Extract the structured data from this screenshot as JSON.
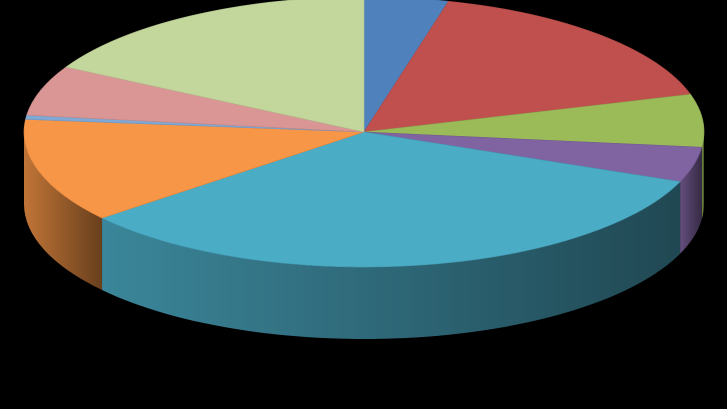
{
  "chart_data": {
    "type": "pie",
    "style": "3d",
    "title": "",
    "background": "#000000",
    "slices": [
      {
        "value": 4.0,
        "color": "#4F81BD"
      },
      {
        "value": 16.5,
        "color": "#C0504D"
      },
      {
        "value": 6.3,
        "color": "#9BBB59"
      },
      {
        "value": 4.2,
        "color": "#8064A2"
      },
      {
        "value": 33.0,
        "color": "#4BACC6"
      },
      {
        "value": 12.5,
        "color": "#F79646"
      },
      {
        "value": 0.5,
        "color": "#7FA8D6"
      },
      {
        "value": 6.0,
        "color": "#D99694"
      },
      {
        "value": 17.0,
        "color": "#C3D69B"
      }
    ]
  }
}
